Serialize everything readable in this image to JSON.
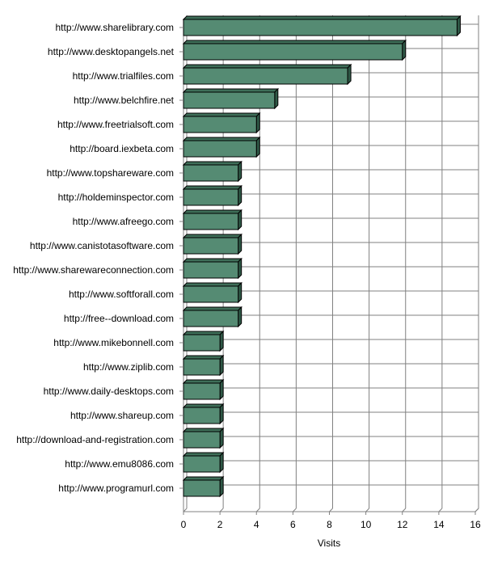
{
  "chart_data": {
    "type": "bar",
    "orientation": "horizontal",
    "style": "3d",
    "categories": [
      "http://www.sharelibrary.com",
      "http://www.desktopangels.net",
      "http://www.trialfiles.com",
      "http://www.belchfire.net",
      "http://www.freetrialsoft.com",
      "http://board.iexbeta.com",
      "http://www.topshareware.com",
      "http://holdeminspector.com",
      "http://www.afreego.com",
      "http://www.canistotasoftware.com",
      "http://www.sharewareconnection.com",
      "http://www.softforall.com",
      "http://free--download.com",
      "http://www.mikebonnell.com",
      "http://www.ziplib.com",
      "http://www.daily-desktops.com",
      "http://www.shareup.com",
      "http://download-and-registration.com",
      "http://www.emu8086.com",
      "http://www.programurl.com"
    ],
    "values": [
      15,
      12,
      9,
      5,
      4,
      4,
      3,
      3,
      3,
      3,
      3,
      3,
      3,
      2,
      2,
      2,
      2,
      2,
      2,
      2
    ],
    "xlabel": "Visits",
    "ylabel": "",
    "xlim": [
      0,
      16
    ],
    "xticks": [
      "0",
      "2",
      "4",
      "6",
      "8",
      "10",
      "12",
      "14",
      "16"
    ],
    "grid": true,
    "bar_color": "#558B73",
    "grid_color": "#808080"
  }
}
